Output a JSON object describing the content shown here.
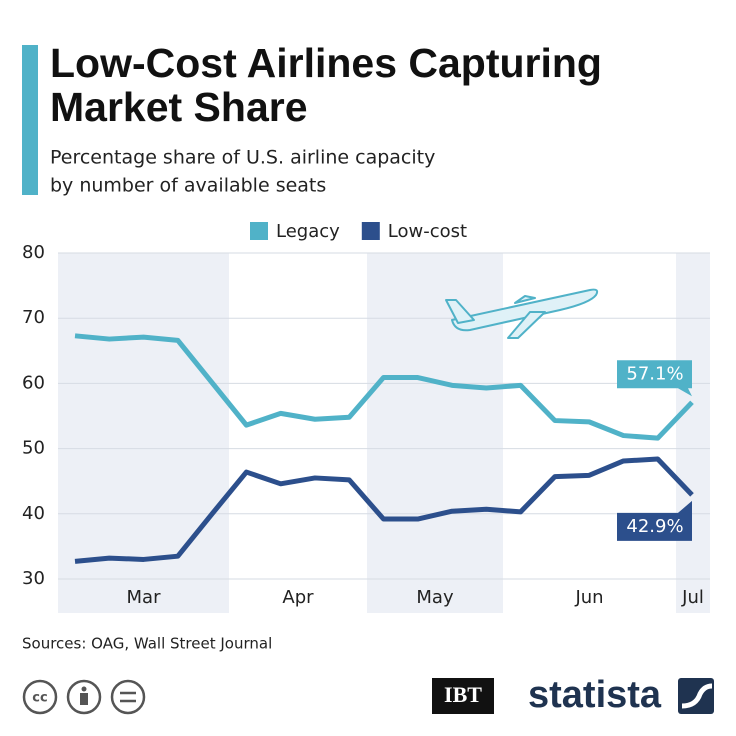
{
  "chart_data": {
    "type": "line",
    "title_lines": [
      "Low-Cost Airlines Capturing",
      "Market Share"
    ],
    "subtitle_lines": [
      "Percentage share of U.S. airline capacity",
      "by number of available seats"
    ],
    "categories": [
      null,
      null,
      null,
      null,
      null,
      null,
      null,
      null,
      null,
      null,
      null,
      null,
      null,
      null,
      null,
      null,
      null,
      null,
      null
    ],
    "month_labels": [
      "Mar",
      "Apr",
      "May",
      "Jun",
      "Jul"
    ],
    "series": [
      {
        "name": "Legacy",
        "color": "#50b2c8",
        "values": [
          67.3,
          66.8,
          67.1,
          66.6,
          60.1,
          53.6,
          55.4,
          54.5,
          54.8,
          60.9,
          60.9,
          59.7,
          59.3,
          59.7,
          54.3,
          54.1,
          52.0,
          51.6,
          57.1
        ],
        "value_labels": [
          null,
          null,
          null,
          null,
          null,
          null,
          null,
          null,
          null,
          null,
          null,
          null,
          null,
          null,
          null,
          null,
          null,
          null,
          "57.1%"
        ]
      },
      {
        "name": "Low-cost",
        "color": "#2c4f8c",
        "values": [
          32.7,
          33.2,
          33.0,
          33.5,
          40.0,
          46.4,
          44.6,
          45.5,
          45.2,
          39.2,
          39.2,
          40.4,
          40.7,
          40.3,
          45.7,
          45.9,
          48.1,
          48.4,
          42.9
        ],
        "value_labels": [
          null,
          null,
          null,
          null,
          null,
          null,
          null,
          null,
          null,
          null,
          null,
          null,
          null,
          null,
          null,
          null,
          null,
          null,
          "42.9%"
        ]
      }
    ],
    "ylim": [
      30,
      80
    ],
    "yticks": [
      30,
      40,
      50,
      60,
      70,
      80
    ],
    "grid": true,
    "legend": "top",
    "source": "Sources: OAG, Wall Street Journal",
    "logos": [
      "IBT",
      "statista"
    ]
  }
}
